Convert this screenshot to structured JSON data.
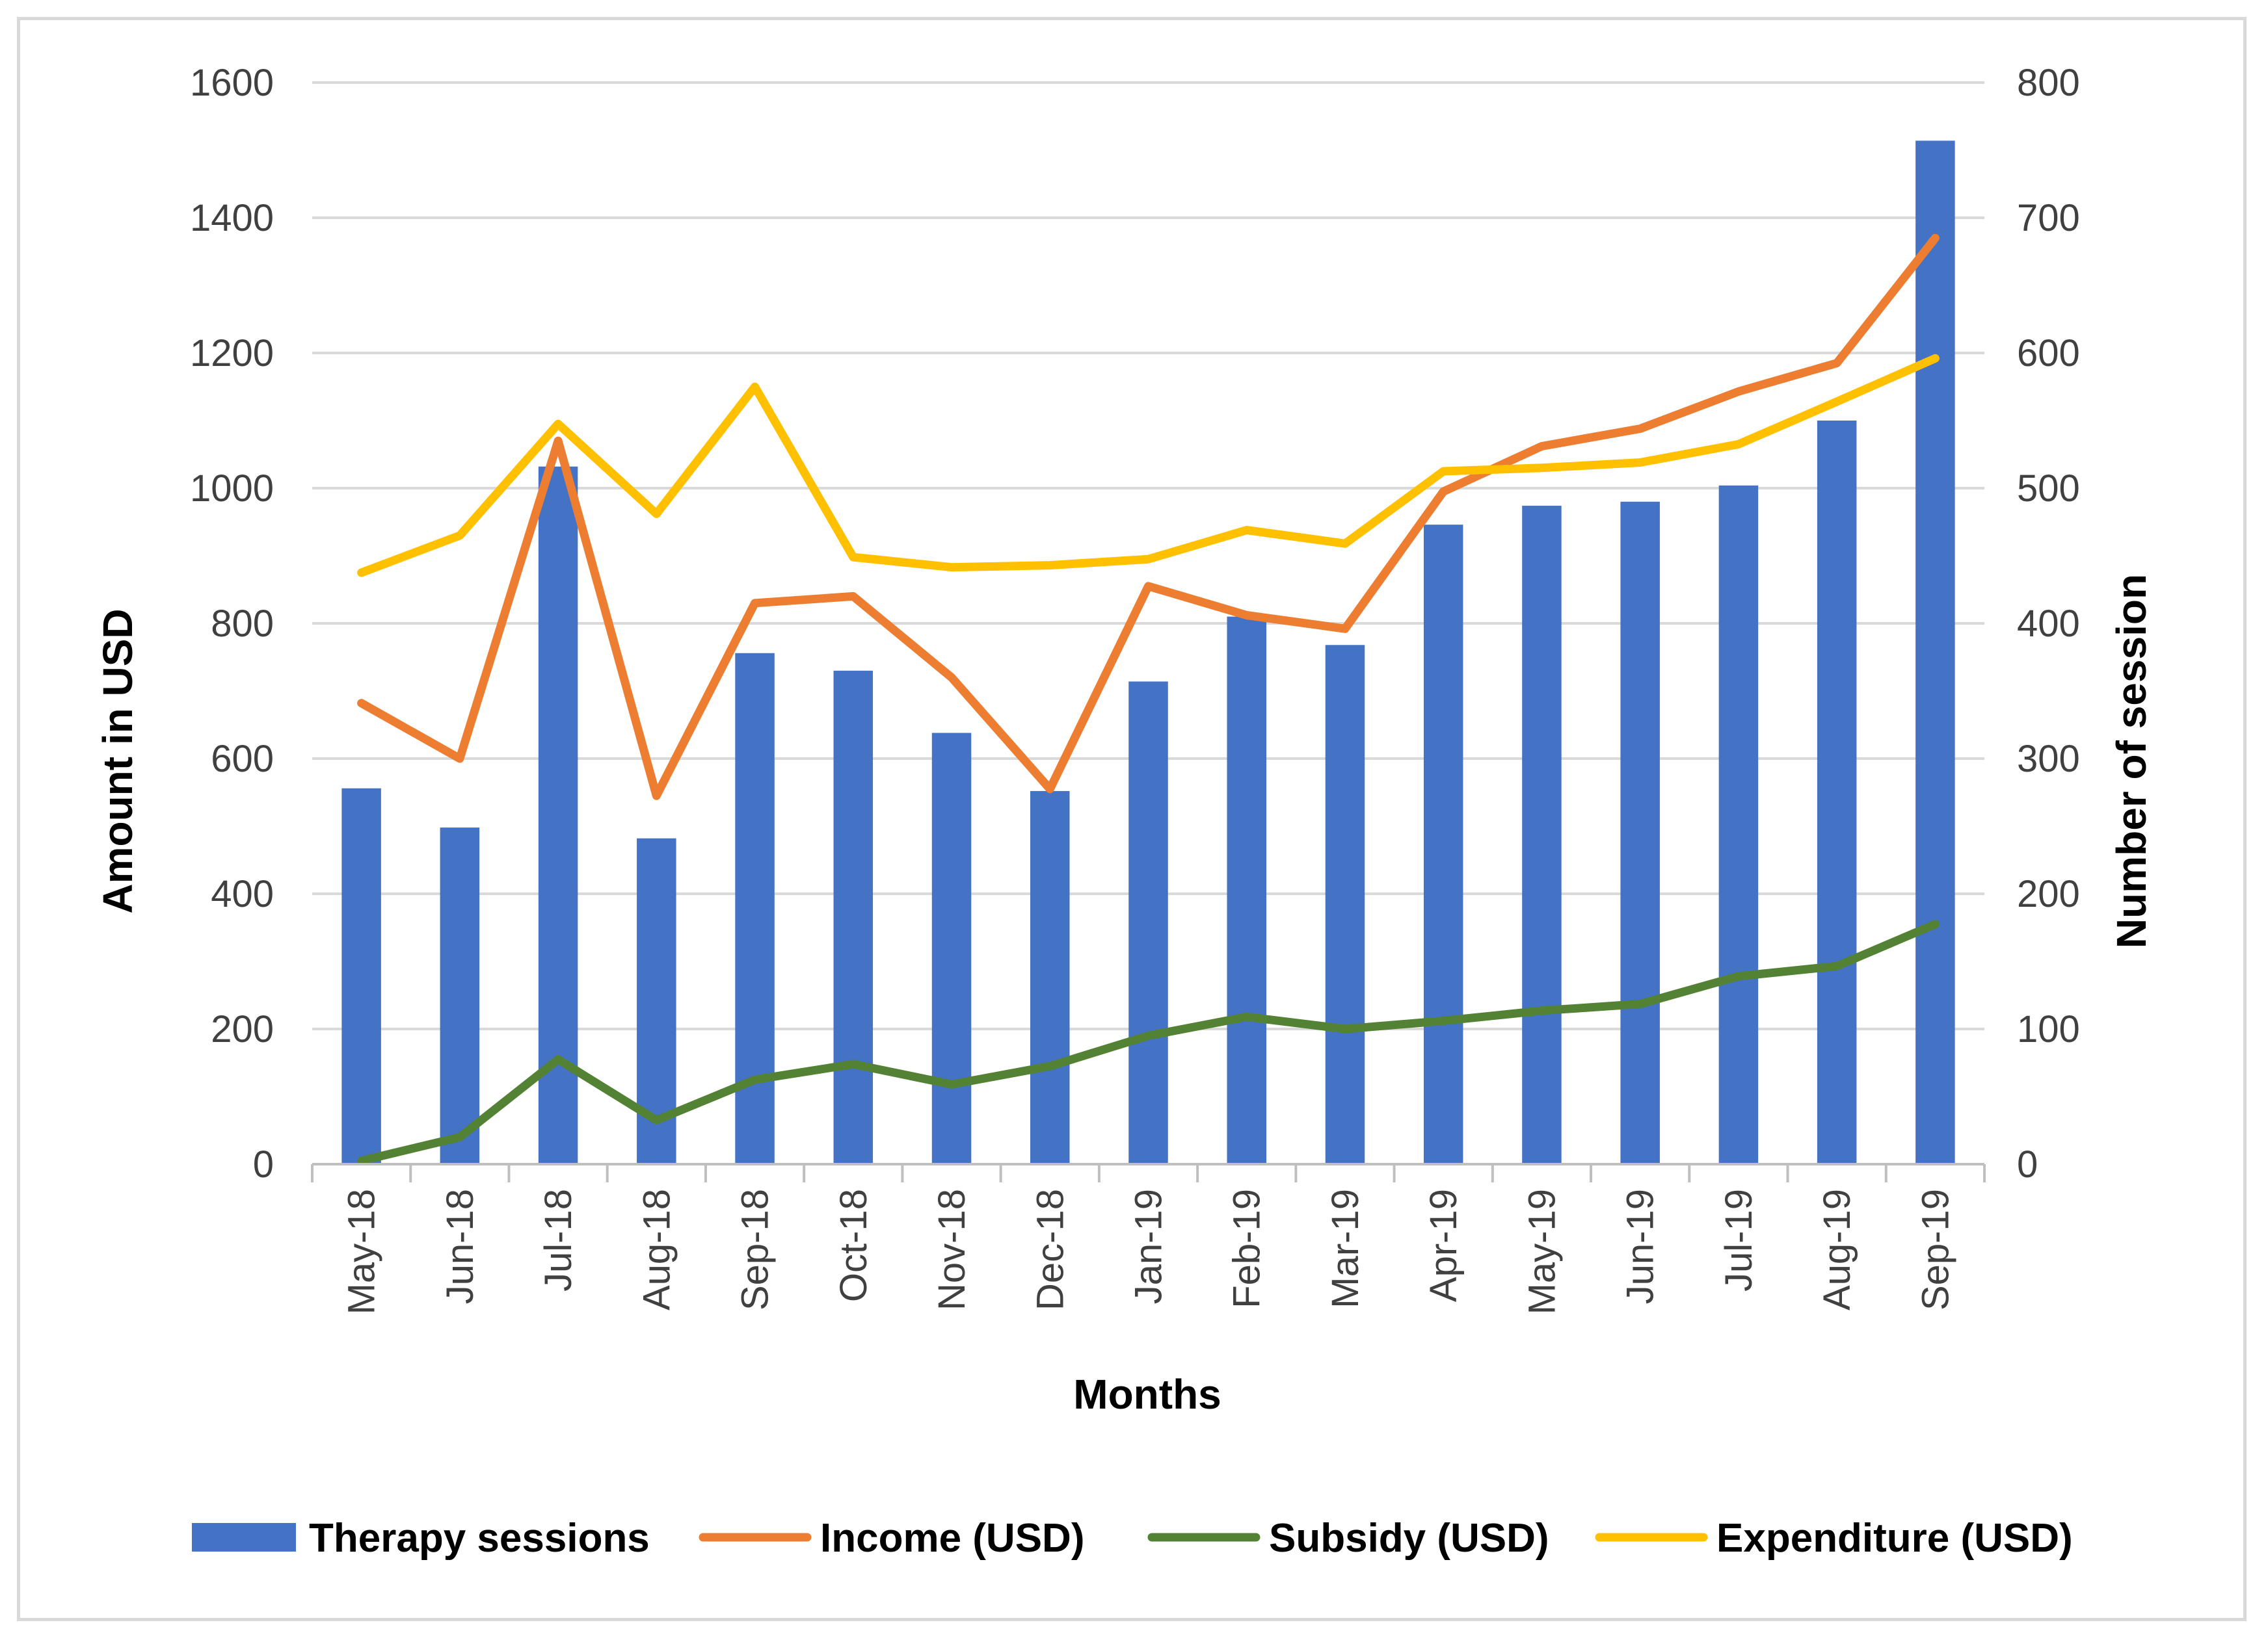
{
  "chart_data": {
    "type": "bar",
    "title": "",
    "xlabel": "Months",
    "ylabel": "Amount in USD",
    "y2label": "Number of session",
    "ylim": [
      0,
      1600
    ],
    "y2lim": [
      0,
      800
    ],
    "yticks": [
      "0",
      "200",
      "400",
      "600",
      "800",
      "1000",
      "1200",
      "1400",
      "1600"
    ],
    "y2ticks": [
      "0",
      "100",
      "200",
      "300",
      "400",
      "500",
      "600",
      "700",
      "800"
    ],
    "grid": true,
    "legend_position": "bottom",
    "categories": [
      "May-18",
      "Jun-18",
      "Jul-18",
      "Aug-18",
      "Sep-18",
      "Oct-18",
      "Nov-18",
      "Dec-18",
      "Jan-19",
      "Feb-19",
      "Mar-19",
      "Apr-19",
      "May-19",
      "Jun-19",
      "Jul-19",
      "Aug-19",
      "Sep-19"
    ],
    "series": [
      {
        "name": "Therapy sessions",
        "type": "bar",
        "axis": "right",
        "color": "#4472c4",
        "values": [
          278,
          249,
          516,
          241,
          378,
          365,
          319,
          276,
          357,
          405,
          384,
          473,
          487,
          490,
          502,
          550,
          757
        ]
      },
      {
        "name": "Income (USD)",
        "type": "line",
        "axis": "left",
        "color": "#ed7d31",
        "values": [
          682,
          600,
          1070,
          545,
          830,
          840,
          720,
          555,
          855,
          812,
          792,
          995,
          1062,
          1088,
          1143,
          1185,
          1370
        ]
      },
      {
        "name": "Subsidy (USD)",
        "type": "line",
        "axis": "left",
        "color": "#548235",
        "values": [
          5,
          40,
          155,
          65,
          125,
          148,
          118,
          145,
          190,
          218,
          200,
          212,
          227,
          237,
          278,
          293,
          355
        ]
      },
      {
        "name": "Expenditure (USD)",
        "type": "line",
        "axis": "left",
        "color": "#ffc000",
        "values": [
          875,
          930,
          1095,
          962,
          1150,
          898,
          883,
          886,
          895,
          938,
          918,
          1025,
          1030,
          1038,
          1065,
          1128,
          1192
        ]
      }
    ]
  }
}
